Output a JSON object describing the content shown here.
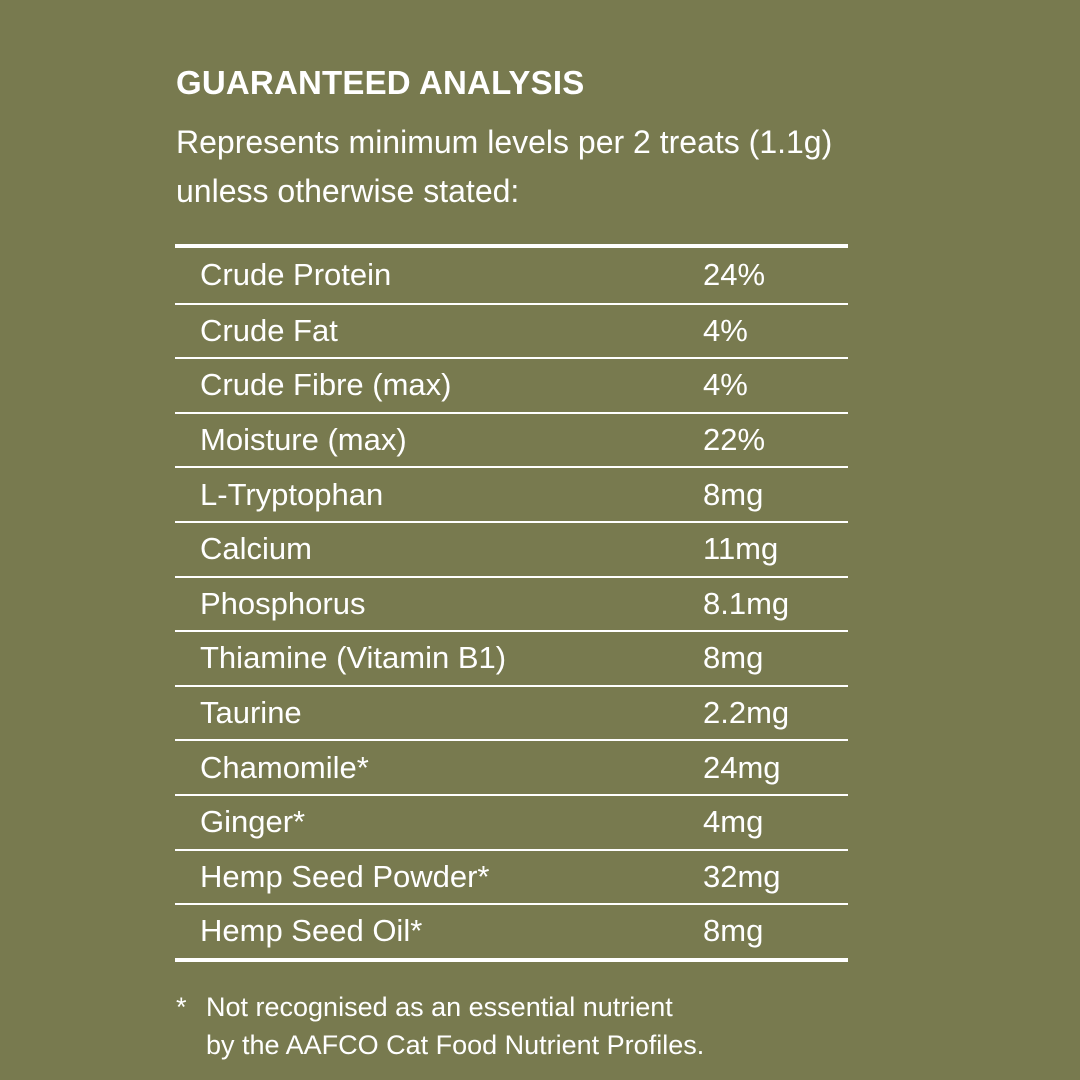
{
  "title": "GUARANTEED ANALYSIS",
  "subtitle": "Represents minimum levels per 2 treats (1.1g) unless otherwise stated:",
  "rows": [
    {
      "name": "Crude Protein",
      "value": "24%"
    },
    {
      "name": "Crude Fat",
      "value": "4%"
    },
    {
      "name": "Crude Fibre (max)",
      "value": "4%"
    },
    {
      "name": "Moisture (max)",
      "value": "22%"
    },
    {
      "name": "L-Tryptophan",
      "value": "8mg"
    },
    {
      "name": "Calcium",
      "value": "11mg"
    },
    {
      "name": "Phosphorus",
      "value": "8.1mg"
    },
    {
      "name": "Thiamine (Vitamin B1)",
      "value": "8mg"
    },
    {
      "name": "Taurine",
      "value": "2.2mg"
    },
    {
      "name": "Chamomile*",
      "value": "24mg"
    },
    {
      "name": "Ginger*",
      "value": "4mg"
    },
    {
      "name": "Hemp Seed Powder*",
      "value": "32mg"
    },
    {
      "name": "Hemp Seed Oil*",
      "value": "8mg"
    }
  ],
  "footnote": {
    "marker": "*",
    "line1": "Not recognised as an essential nutrient",
    "line2": "by the AAFCO Cat Food Nutrient Profiles."
  },
  "colors": {
    "background": "#787a4f",
    "text": "#ffffff"
  }
}
